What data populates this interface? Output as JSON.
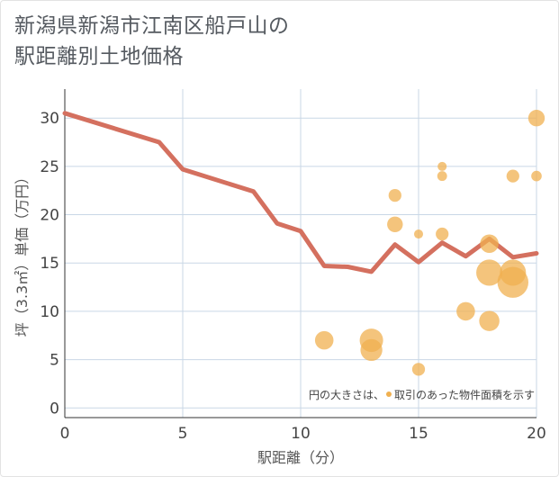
{
  "title": {
    "line1": "新潟県新潟市江南区船戸山の",
    "line2": "駅距離別土地価格"
  },
  "colors": {
    "line": "#d4705f",
    "bubble": "#f0b050",
    "grid": "#c9d7e6",
    "axis": "#333333"
  },
  "chart_data": {
    "type": "scatter",
    "xlabel": "駅距離（分）",
    "ylabel": "坪（3.3㎡）単価（万円）",
    "xlim": [
      0,
      20
    ],
    "ylim": [
      -1,
      33
    ],
    "xticks": [
      0,
      5,
      10,
      15,
      20
    ],
    "yticks": [
      0,
      5,
      10,
      15,
      20,
      25,
      30
    ],
    "grid": true,
    "legend_note": "円の大きさは、取引のあった物件面積を示す",
    "line_series": {
      "x": [
        0,
        4,
        5,
        8,
        9,
        10,
        11,
        12,
        13,
        14,
        15,
        16,
        17,
        18,
        19,
        20
      ],
      "y": [
        30.5,
        27.5,
        24.7,
        22.4,
        19.1,
        18.3,
        14.7,
        14.6,
        14.1,
        16.9,
        15.1,
        17.1,
        15.7,
        17.5,
        15.6,
        16.0
      ]
    },
    "bubbles": [
      {
        "x": 11,
        "y": 7,
        "size": 2.5
      },
      {
        "x": 13,
        "y": 7,
        "size": 4
      },
      {
        "x": 13,
        "y": 6,
        "size": 3.5
      },
      {
        "x": 14,
        "y": 22,
        "size": 1.2
      },
      {
        "x": 14,
        "y": 19,
        "size": 1.8
      },
      {
        "x": 15,
        "y": 18,
        "size": 0.6
      },
      {
        "x": 15,
        "y": 4,
        "size": 1.2
      },
      {
        "x": 16,
        "y": 25,
        "size": 0.6
      },
      {
        "x": 16,
        "y": 24,
        "size": 0.7
      },
      {
        "x": 16,
        "y": 18,
        "size": 1.2
      },
      {
        "x": 17,
        "y": 10,
        "size": 2.5
      },
      {
        "x": 18,
        "y": 17,
        "size": 2.5
      },
      {
        "x": 18,
        "y": 14,
        "size": 5
      },
      {
        "x": 18,
        "y": 9,
        "size": 3
      },
      {
        "x": 19,
        "y": 24,
        "size": 1.2
      },
      {
        "x": 19,
        "y": 14,
        "size": 5
      },
      {
        "x": 19,
        "y": 13,
        "size": 7
      },
      {
        "x": 20,
        "y": 30,
        "size": 2
      },
      {
        "x": 20,
        "y": 24,
        "size": 0.8
      }
    ]
  }
}
